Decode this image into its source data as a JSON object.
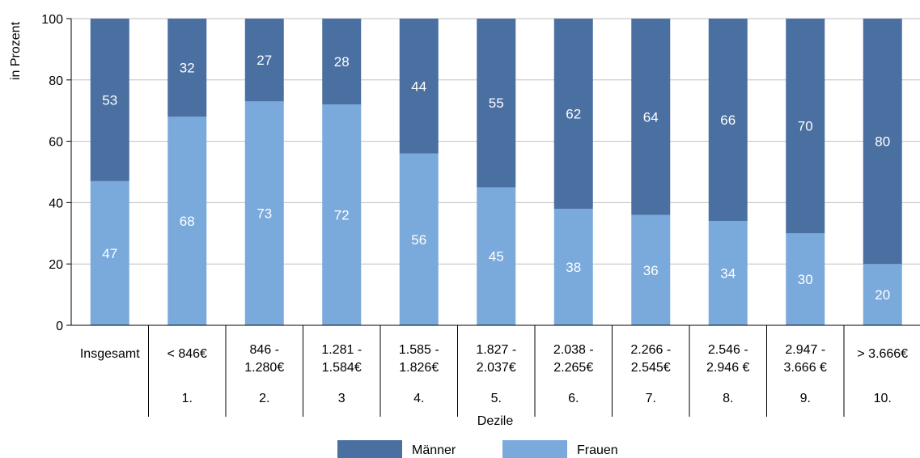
{
  "chart_data": {
    "type": "bar",
    "stacked": true,
    "ylabel": "in Prozent",
    "xlabel": "Dezile",
    "ylim": [
      0,
      100
    ],
    "yticks": [
      0,
      20,
      40,
      60,
      80,
      100
    ],
    "grid": true,
    "legend_position": "bottom",
    "categories": [
      {
        "label": [
          "Insgesamt"
        ],
        "decile": ""
      },
      {
        "label": [
          "< 846€"
        ],
        "decile": "1."
      },
      {
        "label": [
          "846 -",
          "1.280€"
        ],
        "decile": "2."
      },
      {
        "label": [
          "1.281 -",
          "1.584€"
        ],
        "decile": "3"
      },
      {
        "label": [
          "1.585 -",
          "1.826€"
        ],
        "decile": "4."
      },
      {
        "label": [
          "1.827 -",
          "2.037€"
        ],
        "decile": "5."
      },
      {
        "label": [
          "2.038 -",
          "2.265€"
        ],
        "decile": "6."
      },
      {
        "label": [
          "2.266 -",
          "2.545€"
        ],
        "decile": "7."
      },
      {
        "label": [
          "2.546 -",
          "2.946 €"
        ],
        "decile": "8."
      },
      {
        "label": [
          "2.947 -",
          "3.666 €"
        ],
        "decile": "9."
      },
      {
        "label": [
          "> 3.666€"
        ],
        "decile": "10."
      }
    ],
    "series": [
      {
        "name": "Frauen",
        "color": "#7aaadb",
        "values": [
          47,
          68,
          73,
          72,
          56,
          45,
          38,
          36,
          34,
          30,
          20
        ]
      },
      {
        "name": "Männer",
        "color": "#4a6fa1",
        "values": [
          53,
          32,
          27,
          28,
          44,
          55,
          62,
          64,
          66,
          70,
          80
        ]
      }
    ],
    "legend_order": [
      "Männer",
      "Frauen"
    ]
  }
}
